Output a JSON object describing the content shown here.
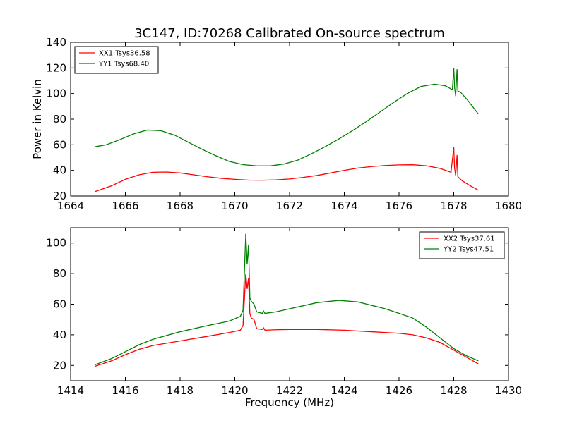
{
  "figure": {
    "title": "3C147, ID:70268 Calibrated On-source spectrum"
  },
  "chart_data": [
    {
      "type": "line",
      "title": "3C147, ID:70268 Calibrated On-source spectrum",
      "xlabel": "",
      "ylabel": "Power in Kelvin",
      "xlim": [
        1664,
        1680
      ],
      "ylim": [
        20,
        140
      ],
      "xticks": [
        1664,
        1666,
        1668,
        1670,
        1672,
        1674,
        1676,
        1678,
        1680
      ],
      "yticks": [
        20,
        40,
        60,
        80,
        100,
        120,
        140
      ],
      "grid": false,
      "legend_position": "top-left",
      "series": [
        {
          "name": "XX1 Tsys36.58",
          "color": "#ff0000",
          "x": [
            1664.9,
            1665.5,
            1666,
            1666.5,
            1667,
            1667.5,
            1668,
            1668.5,
            1669,
            1669.5,
            1670,
            1670.5,
            1671,
            1671.5,
            1672,
            1672.5,
            1673,
            1673.5,
            1674,
            1674.5,
            1675,
            1675.5,
            1676,
            1676.5,
            1677,
            1677.5,
            1677.9,
            1678.0,
            1678.03,
            1678.07,
            1678.12,
            1678.15,
            1678.3,
            1678.6,
            1678.9
          ],
          "y": [
            23.5,
            28,
            33,
            36.5,
            38.5,
            38.7,
            38,
            36.5,
            35,
            33.8,
            33,
            32.4,
            32.3,
            32.6,
            33.3,
            34.5,
            36,
            38,
            40,
            41.8,
            43,
            43.8,
            44.3,
            44.4,
            43.6,
            41.5,
            38.5,
            58,
            42,
            36,
            52,
            35,
            32,
            28,
            24.5
          ]
        },
        {
          "name": "YY1 Tsys68.40",
          "color": "#008000",
          "x": [
            1664.9,
            1665.3,
            1665.8,
            1666.3,
            1666.8,
            1667.3,
            1667.8,
            1668.3,
            1668.8,
            1669.3,
            1669.8,
            1670.3,
            1670.8,
            1671.3,
            1671.8,
            1672.3,
            1672.8,
            1673.3,
            1673.8,
            1674.3,
            1674.8,
            1675.3,
            1675.8,
            1676.3,
            1676.8,
            1677.3,
            1677.7,
            1677.95,
            1678.0,
            1678.03,
            1678.07,
            1678.12,
            1678.15,
            1678.25,
            1678.5,
            1678.9
          ],
          "y": [
            58.5,
            60,
            64,
            68.5,
            71.5,
            71,
            67.5,
            62,
            56.5,
            51.5,
            47,
            44.5,
            43.5,
            43.5,
            45,
            48,
            53,
            58.5,
            64.5,
            71,
            78,
            85.5,
            93,
            100,
            105.5,
            107.3,
            106,
            103,
            120,
            105,
            98,
            119,
            102,
            101,
            95,
            84
          ]
        }
      ]
    },
    {
      "type": "line",
      "title": "",
      "xlabel": "Frequency (MHz)",
      "ylabel": "",
      "xlim": [
        1414,
        1430
      ],
      "ylim": [
        10,
        110
      ],
      "xticks": [
        1414,
        1416,
        1418,
        1420,
        1422,
        1424,
        1426,
        1428,
        1430
      ],
      "yticks": [
        20,
        40,
        60,
        80,
        100
      ],
      "grid": false,
      "legend_position": "top-right",
      "series": [
        {
          "name": "XX2 Tsys37.61",
          "color": "#ff0000",
          "x": [
            1414.9,
            1415.5,
            1416,
            1416.5,
            1417,
            1418,
            1419,
            1419.8,
            1420.2,
            1420.3,
            1420.4,
            1420.45,
            1420.5,
            1420.55,
            1420.6,
            1420.7,
            1420.8,
            1421.0,
            1421.05,
            1421.1,
            1421.5,
            1422,
            1423,
            1424,
            1425,
            1426,
            1426.5,
            1427,
            1427.5,
            1428,
            1428.5,
            1428.9
          ],
          "y": [
            19.5,
            23,
            27,
            30.5,
            33,
            36,
            39,
            41.5,
            43,
            46,
            80,
            70,
            77,
            54,
            51,
            50,
            44,
            43.5,
            44.5,
            43,
            43.3,
            43.5,
            43.5,
            43,
            42,
            41,
            40,
            38,
            35,
            30,
            25,
            21
          ]
        },
        {
          "name": "YY2 Tsys47.51",
          "color": "#008000",
          "x": [
            1414.9,
            1415.5,
            1416,
            1416.5,
            1417,
            1418,
            1419,
            1419.8,
            1420.2,
            1420.3,
            1420.4,
            1420.45,
            1420.5,
            1420.55,
            1420.6,
            1420.7,
            1420.8,
            1421.0,
            1421.05,
            1421.1,
            1421.5,
            1422,
            1423,
            1423.8,
            1424.5,
            1425.5,
            1426.5,
            1427,
            1427.5,
            1428,
            1428.5,
            1428.9
          ],
          "y": [
            20.5,
            24.5,
            29,
            33.5,
            37,
            42,
            46,
            49,
            52,
            56,
            106,
            86,
            99,
            64,
            62,
            60,
            55,
            54,
            55.5,
            54,
            55,
            57,
            61,
            62.5,
            61.5,
            57,
            51,
            45,
            38,
            31,
            26,
            23
          ]
        }
      ]
    }
  ]
}
